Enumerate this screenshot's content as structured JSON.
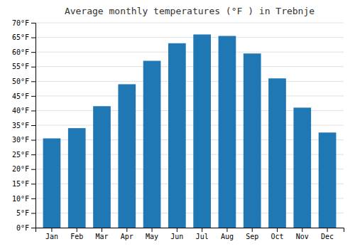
{
  "chart_data": {
    "type": "bar",
    "title": "Average monthly temperatures (°F ) in Trebnje",
    "categories": [
      "Jan",
      "Feb",
      "Mar",
      "Apr",
      "May",
      "Jun",
      "Jul",
      "Aug",
      "Sep",
      "Oct",
      "Nov",
      "Dec"
    ],
    "values": [
      30.5,
      34.0,
      41.5,
      49.0,
      57.0,
      63.0,
      66.0,
      65.5,
      59.5,
      51.0,
      41.0,
      32.5
    ],
    "ylim": [
      0,
      70
    ],
    "yticks": [
      {
        "value": 0,
        "label": "0°F"
      },
      {
        "value": 5,
        "label": "5°F"
      },
      {
        "value": 10,
        "label": "10°F"
      },
      {
        "value": 15,
        "label": "15°F"
      },
      {
        "value": 20,
        "label": "20°F"
      },
      {
        "value": 25,
        "label": "25°F"
      },
      {
        "value": 30,
        "label": "30°F"
      },
      {
        "value": 35,
        "label": "35°F"
      },
      {
        "value": 40,
        "label": "40°F"
      },
      {
        "value": 45,
        "label": "45°F"
      },
      {
        "value": 50,
        "label": "50°F"
      },
      {
        "value": 55,
        "label": "55°F"
      },
      {
        "value": 60,
        "label": "60°F"
      },
      {
        "value": 65,
        "label": "65°F"
      },
      {
        "value": 70,
        "label": "70°F"
      }
    ],
    "grid": true
  }
}
